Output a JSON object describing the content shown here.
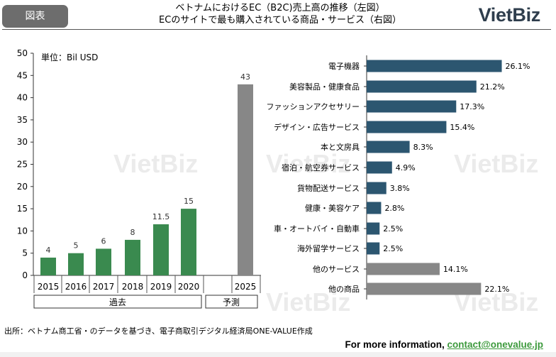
{
  "tag_label": "図表",
  "header": {
    "title_line1": "ベトナムにおけるEC（B2C)売上高の推移（左図）",
    "title_line2": "ECのサイトで最も購入されている商品・サービス（右図）",
    "logo": "VietBiz"
  },
  "watermark": "VietBiz",
  "source_note": "出所：ベトナム商工省・のデータを基づき、電子商取引デジタル経済局ONE-VALUE作成",
  "contact": {
    "prefix": "For more information, ",
    "email": "contact@onevalue.jp"
  },
  "colors": {
    "past_bar": "#3a8a4f",
    "forecast_bar": "#878787",
    "category_bar": "#2c5670",
    "other_bar": "#878787"
  },
  "chart_data": [
    {
      "type": "bar",
      "unit_label": "単位：Bil USD",
      "categories": [
        "2015",
        "2016",
        "2017",
        "2018",
        "2019",
        "2020",
        "2025"
      ],
      "values": [
        4,
        5,
        6,
        8,
        11.5,
        15,
        43
      ],
      "value_labels": [
        "4",
        "5",
        "6",
        "8",
        "11.5",
        "15",
        "43"
      ],
      "groups": [
        {
          "label": "過去",
          "categories": [
            "2015",
            "2016",
            "2017",
            "2018",
            "2019",
            "2020"
          ]
        },
        {
          "label": "予測",
          "categories": [
            "2025"
          ]
        }
      ],
      "ylim": [
        0,
        50
      ],
      "yticks": [
        0,
        5,
        10,
        15,
        20,
        25,
        30,
        35,
        40,
        45,
        50
      ],
      "grid": false
    },
    {
      "type": "bar",
      "orientation": "horizontal",
      "categories": [
        "電子機器",
        "美容製品・健康食品",
        "ファッションアクセサリー",
        "デザイン・広告サービス",
        "本と文房具",
        "宿泊・航空券サービス",
        "貨物配送サービス",
        "健康・美容ケア",
        "車・オートバイ・自動車",
        "海外留学サービス",
        "他のサービス",
        "他の商品"
      ],
      "values": [
        26.1,
        21.2,
        17.3,
        15.4,
        8.3,
        4.9,
        3.8,
        2.8,
        2.5,
        2.5,
        14.1,
        22.1
      ],
      "value_labels": [
        "26.1%",
        "21.2%",
        "17.3%",
        "15.4%",
        "8.3%",
        "4.9%",
        "3.8%",
        "2.8%",
        "2.5%",
        "2.5%",
        "14.1%",
        "22.1%"
      ],
      "highlight_categories": [
        "他のサービス",
        "他の商品"
      ],
      "xlim": [
        0,
        30
      ],
      "grid": false
    }
  ]
}
